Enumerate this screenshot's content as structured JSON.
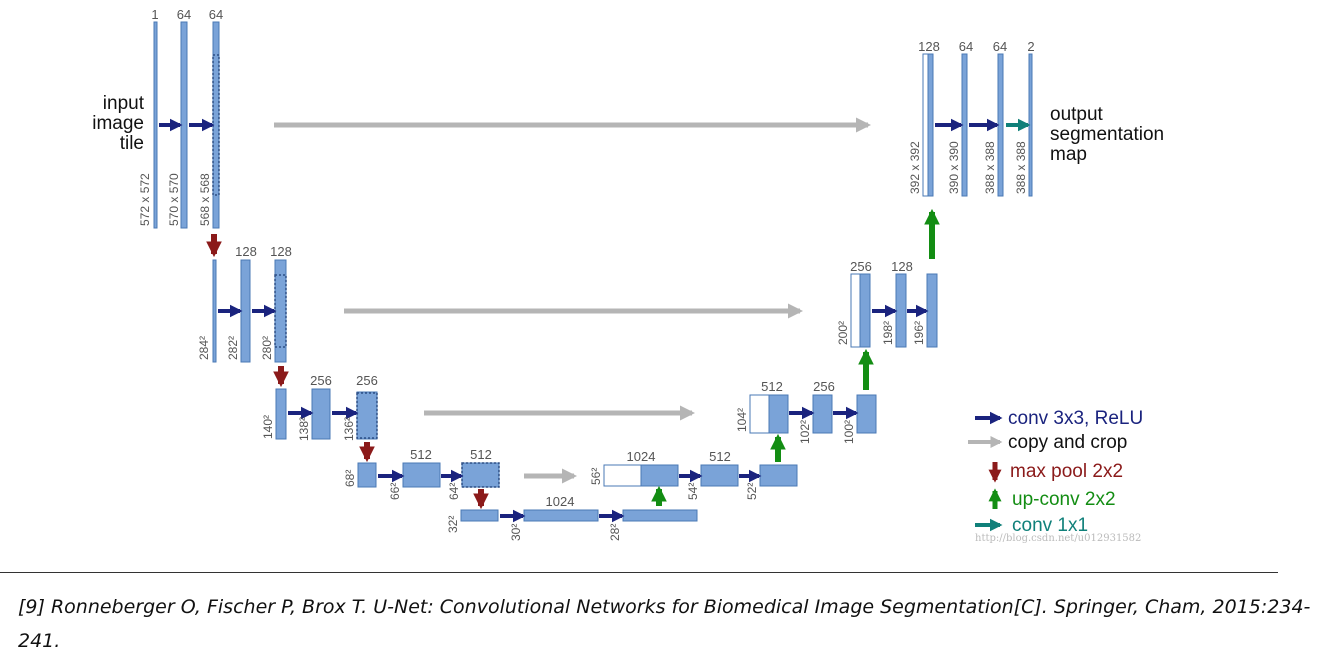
{
  "input_label": [
    "input",
    "image",
    "tile"
  ],
  "output_label": [
    "output",
    "segmentation",
    "map"
  ],
  "channel_labels": {
    "l1a": "1",
    "l1b": "64",
    "l1c": "64",
    "l2b": "128",
    "l2c": "128",
    "l3b": "256",
    "l3c": "256",
    "l4b": "512",
    "l4c": "512",
    "l5b": "1024",
    "u4a": "1024",
    "u4b": "512",
    "u3a": "512",
    "u3b": "256",
    "u2a": "256",
    "u2b": "128",
    "u1a": "128",
    "u1b": "64",
    "u1c": "64",
    "u1d": "2"
  },
  "size_labels": {
    "l1a": "572 x 572",
    "l1b": "570 x 570",
    "l1c": "568 x 568",
    "l2a": "284²",
    "l2b": "282²",
    "l2c": "280²",
    "l3a": "140²",
    "l3b": "138²",
    "l3c": "136²",
    "l4a": "68²",
    "l4b": "66²",
    "l4c": "64²",
    "l5a": "32²",
    "l5b": "30²",
    "l5c": "28²",
    "u4a": "56²",
    "u4b": "54²",
    "u4c": "52²",
    "u3a": "104²",
    "u3b": "102²",
    "u3c": "100²",
    "u2a": "200²",
    "u2b": "198²",
    "u2c": "196²",
    "u1a": "392 x 392",
    "u1b": "390 x 390",
    "u1c": "388 x 388",
    "u1d": "388 x 388"
  },
  "legend": [
    {
      "label": "conv 3x3, ReLU",
      "color": "#1a237e"
    },
    {
      "label": "copy and crop",
      "color": "#111111"
    },
    {
      "label": "max pool 2x2",
      "color": "#8b1a1a"
    },
    {
      "label": "up-conv 2x2",
      "color": "#138d13"
    },
    {
      "label": "conv 1x1",
      "color": "#10807a"
    }
  ],
  "watermark": "http://blog.csdn.net/u012931582",
  "colors": {
    "block": "#7aa3d8",
    "block_edge": "#4a78b5",
    "conv_arrow": "#1a237e",
    "copy_arrow": "#b5b5b5",
    "pool_arrow": "#8b1a1a",
    "upconv_arrow": "#138d13",
    "conv1x1_arrow": "#10807a"
  },
  "citation": "[9] Ronneberger O, Fischer P, Brox T. U-Net: Convolutional Networks for Biomedical Image Segmentation[C]. Springer, Cham, 2015:234-241."
}
